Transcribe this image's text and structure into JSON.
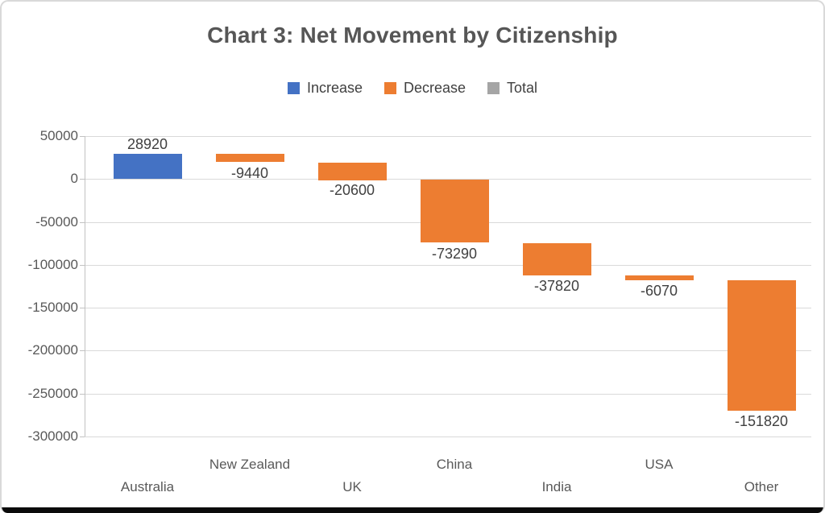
{
  "chart_data": {
    "type": "bar",
    "subtype": "waterfall",
    "title": "Chart 3: Net Movement by Citizenship",
    "categories": [
      "Australia",
      "New Zealand",
      "UK",
      "China",
      "India",
      "USA",
      "Other"
    ],
    "values": [
      28920,
      -9440,
      -20600,
      -73290,
      -37820,
      -6070,
      -151820
    ],
    "bar_types": [
      "increase",
      "decrease",
      "decrease",
      "decrease",
      "decrease",
      "decrease",
      "decrease"
    ],
    "data_labels": [
      "28920",
      "-9440",
      "-20600",
      "-73290",
      "-37820",
      "-6070",
      "-151820"
    ],
    "running_totals": [
      28920,
      19480,
      -1120,
      -74410,
      -112230,
      -118300,
      -270120
    ],
    "ylim": [
      -300000,
      50000
    ],
    "y_ticks": [
      "50000",
      "0",
      "-50000",
      "-100000",
      "-150000",
      "-200000",
      "-250000",
      "-300000"
    ],
    "y_tick_values": [
      50000,
      0,
      -50000,
      -100000,
      -150000,
      -200000,
      -250000,
      -300000
    ],
    "grid": true,
    "legend_position": "top",
    "legend": [
      {
        "label": "Increase",
        "color": "#4472C4"
      },
      {
        "label": "Decrease",
        "color": "#ED7D31"
      },
      {
        "label": "Total",
        "color": "#A5A5A5"
      }
    ],
    "colors": {
      "increase": "#4472C4",
      "decrease": "#ED7D31",
      "total": "#A5A5A5"
    }
  }
}
